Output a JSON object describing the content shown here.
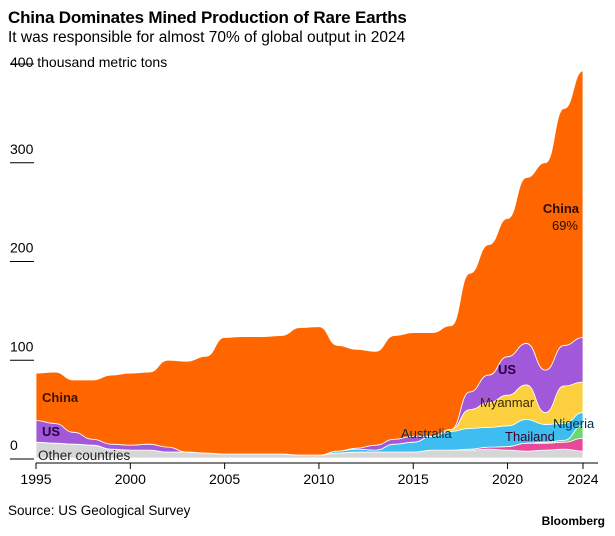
{
  "title": "China Dominates Mined Production of Rare Earths",
  "subtitle": "It was responsible for almost 70% of global output in 2024",
  "source": "Source: US Geological Survey",
  "brand": "Bloomberg",
  "chart_data": {
    "type": "area",
    "stacked": true,
    "title": "China Dominates Mined Production of Rare Earths",
    "ylabel": "thousand metric tons",
    "y_unit_label": "400 thousand metric tons",
    "ylim": [
      0,
      400
    ],
    "y_ticks": [
      "0",
      "100",
      "200",
      "300",
      "400"
    ],
    "x_ticks": [
      "1995",
      "2000",
      "2005",
      "2010",
      "2015",
      "2020",
      "2024"
    ],
    "x": [
      1995,
      1996,
      1997,
      1998,
      1999,
      2000,
      2001,
      2002,
      2003,
      2004,
      2005,
      2006,
      2007,
      2008,
      2009,
      2010,
      2011,
      2012,
      2013,
      2014,
      2015,
      2016,
      2017,
      2018,
      2019,
      2020,
      2021,
      2022,
      2023,
      2024
    ],
    "grid": false,
    "legend": "inline labels",
    "series": [
      {
        "name": "Other countries",
        "color": "#d6d6d6",
        "values": [
          16,
          15,
          14,
          13,
          9,
          8,
          8,
          6,
          6,
          5,
          4,
          4,
          4,
          4,
          3,
          3,
          5,
          6,
          6,
          6,
          6,
          8,
          8,
          8,
          9,
          8,
          7,
          8,
          9,
          7
        ]
      },
      {
        "name": "Thailand",
        "color": "#e8499a",
        "values": [
          0,
          0,
          0,
          0,
          0,
          0,
          0,
          0,
          0,
          0,
          0,
          0,
          0,
          0,
          0,
          0,
          0,
          0,
          0,
          0,
          0,
          0,
          0,
          1,
          2,
          3.6,
          8,
          7,
          7,
          13
        ]
      },
      {
        "name": "Nigeria",
        "color": "#6ad86a",
        "values": [
          0,
          0,
          0,
          0,
          0,
          0,
          0,
          0,
          0,
          0,
          0,
          0,
          0,
          0,
          0,
          0,
          0,
          0,
          0,
          0,
          0,
          0,
          0,
          0,
          0,
          0,
          0,
          1,
          2,
          13
        ]
      },
      {
        "name": "Australia",
        "color": "#3dbdf0",
        "values": [
          0,
          0,
          0,
          0,
          0,
          0,
          0,
          0,
          0,
          0,
          0,
          0,
          0,
          0,
          0,
          0,
          2,
          3,
          2,
          8,
          10,
          14,
          19,
          21,
          20,
          21,
          24,
          18,
          17,
          13
        ]
      },
      {
        "name": "Myanmar",
        "color": "#fcd03f",
        "values": [
          0,
          0,
          0,
          0,
          0,
          0,
          0,
          0,
          0,
          0,
          0,
          0,
          0,
          0,
          0,
          0,
          0,
          0,
          0,
          0,
          0,
          0,
          2,
          19,
          25,
          31,
          35,
          12,
          38,
          31
        ]
      },
      {
        "name": "US",
        "color": "#a259d9",
        "values": [
          22,
          20,
          12,
          6,
          5,
          5,
          6,
          5,
          0,
          0,
          0,
          0,
          0,
          0,
          0,
          0,
          0,
          1,
          5,
          5,
          6,
          0,
          0,
          18,
          28,
          39,
          42,
          43,
          41,
          45
        ]
      },
      {
        "name": "China",
        "color": "#ff6600",
        "values": [
          48,
          52,
          53,
          60,
          70,
          73,
          73,
          88,
          92,
          98,
          118,
          119,
          119,
          120,
          129,
          130,
          107,
          100,
          95,
          105,
          105,
          105,
          105,
          120,
          132,
          140,
          168,
          210,
          240,
          270
        ]
      }
    ],
    "annotations": {
      "china_left": "China",
      "us_left": "US",
      "other_left": "Other countries",
      "china_right": "China",
      "china_share": "69%",
      "us_right": "US",
      "myanmar": "Myanmar",
      "australia": "Australia",
      "thailand": "Thailand",
      "nigeria": "Nigeria"
    }
  }
}
